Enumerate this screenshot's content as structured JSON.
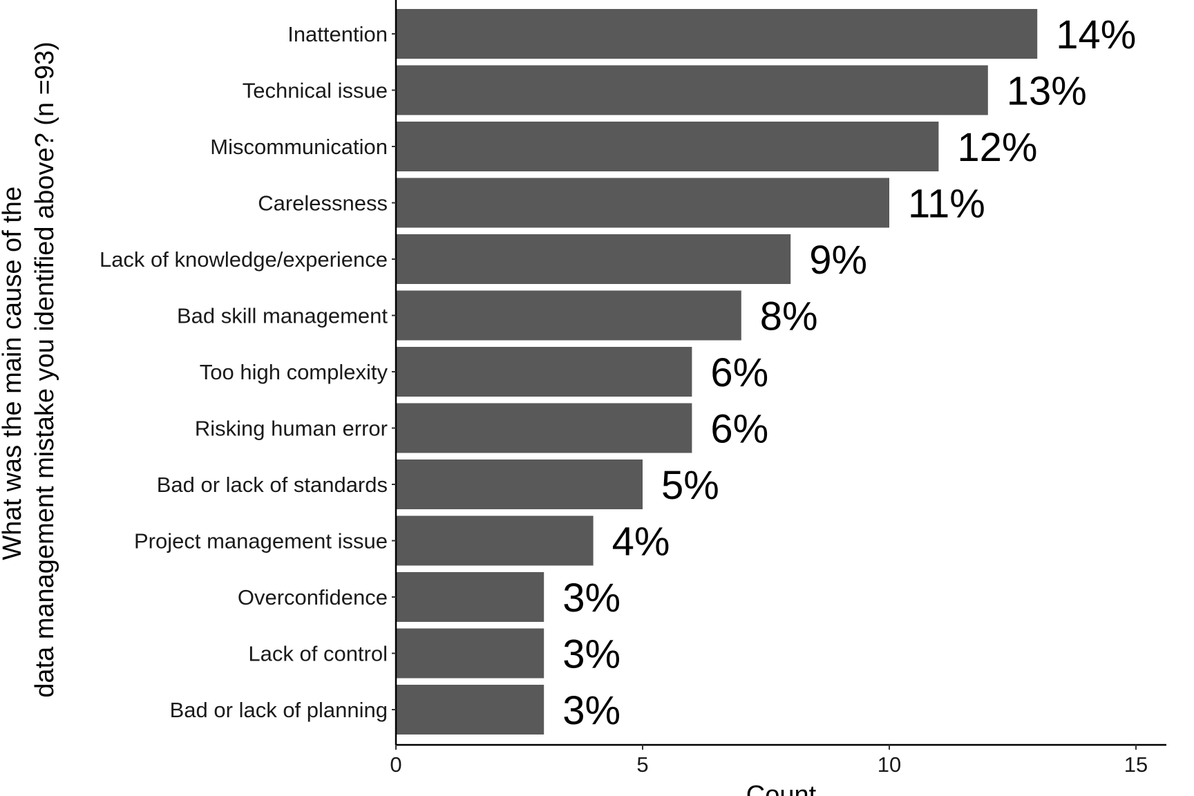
{
  "chart_data": {
    "type": "bar",
    "orientation": "horizontal",
    "categories": [
      "Inattention",
      "Technical issue",
      "Miscommunication",
      "Carelessness",
      "Lack of knowledge/experience",
      "Bad skill management",
      "Too high complexity",
      "Risking human error",
      "Bad or lack of standards",
      "Project management issue",
      "Overconfidence",
      "Lack of control",
      "Bad or lack of planning"
    ],
    "values": [
      13,
      12,
      11,
      10,
      8,
      7,
      6,
      6,
      5,
      4,
      3,
      3,
      3
    ],
    "data_labels": [
      "14%",
      "13%",
      "12%",
      "11%",
      "9%",
      "8%",
      "6%",
      "6%",
      "5%",
      "4%",
      "3%",
      "3%",
      "3%"
    ],
    "xlabel": "Count",
    "ylabel_lines": [
      "What was the main cause of the",
      "data management mistake you identified above?  (n =93)"
    ],
    "xlim": [
      0,
      15.6
    ],
    "xticks": [
      0,
      5,
      10,
      15
    ],
    "xtick_labels": [
      "0",
      "5",
      "10",
      "15"
    ],
    "grid": false,
    "legend": "none",
    "bar_color": "#595959"
  }
}
